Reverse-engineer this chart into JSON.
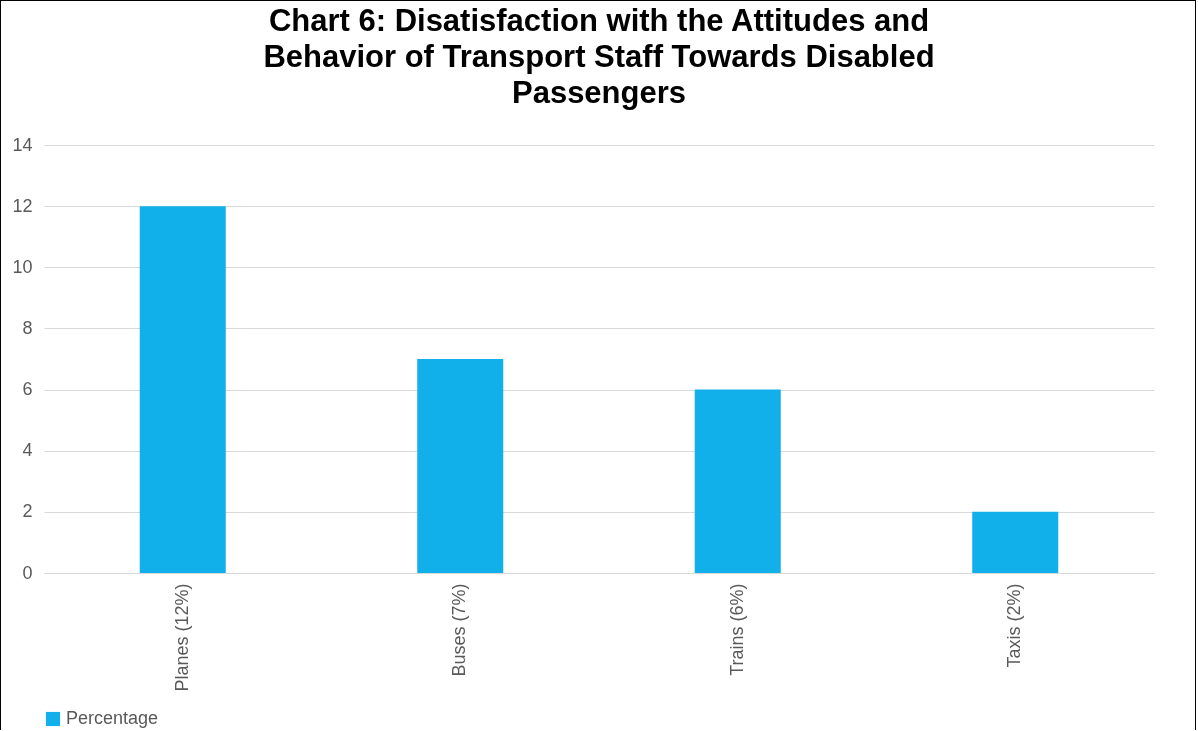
{
  "chart_data": {
    "type": "bar",
    "title": "Chart 6: Disatisfaction with the Attitudes and Behavior of Transport Staff Towards Disabled Passengers",
    "categories": [
      "Planes (12%)",
      "Buses (7%)",
      "Trains (6%)",
      "Taxis (2%)"
    ],
    "series": [
      {
        "name": "Percentage",
        "color": "#12b0ea",
        "values": [
          12,
          7,
          6,
          2
        ]
      }
    ],
    "ylim": [
      0,
      14
    ],
    "yticks": [
      0,
      2,
      4,
      6,
      8,
      10,
      12,
      14
    ],
    "grid": "y",
    "legend": "bottom"
  }
}
